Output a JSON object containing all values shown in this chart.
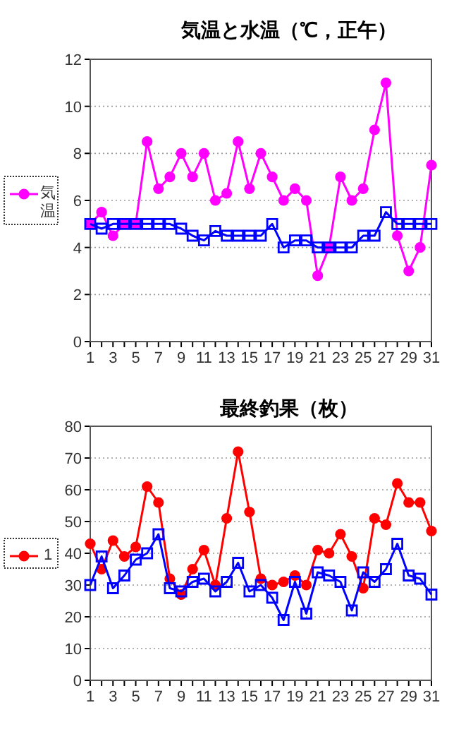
{
  "chart_data": [
    {
      "type": "line",
      "title": "気温と水温（℃，正午）",
      "x": [
        1,
        2,
        3,
        4,
        5,
        6,
        7,
        8,
        9,
        10,
        11,
        12,
        13,
        14,
        15,
        16,
        17,
        18,
        19,
        20,
        21,
        22,
        23,
        24,
        25,
        26,
        27,
        28,
        29,
        30,
        31
      ],
      "xlim": [
        1,
        31
      ],
      "xticks": [
        1,
        {
          "value": 2,
          "label": null
        },
        3,
        {
          "value": 4,
          "label": null
        },
        5,
        {
          "value": 6,
          "label": null
        },
        7,
        {
          "value": 8,
          "label": null
        },
        9,
        {
          "value": 10,
          "label": null
        },
        11,
        {
          "value": 12,
          "label": null
        },
        13,
        {
          "value": 14,
          "label": null
        },
        15,
        {
          "value": 16,
          "label": null
        },
        17,
        {
          "value": 18,
          "label": null
        },
        19,
        {
          "value": 20,
          "label": null
        },
        21,
        {
          "value": 22,
          "label": null
        },
        23,
        {
          "value": 24,
          "label": null
        },
        25,
        {
          "value": 26,
          "label": null
        },
        27,
        {
          "value": 28,
          "label": null
        },
        29,
        {
          "value": 30,
          "label": null
        },
        31
      ],
      "ylim": [
        0,
        12
      ],
      "yticks": [
        0,
        2,
        4,
        6,
        8,
        10,
        12
      ],
      "grid": "y",
      "legend": "left",
      "line_style": "solid",
      "series": [
        {
          "name": "気温",
          "color": "#ff00ff",
          "marker": "circle",
          "values": [
            5,
            5.5,
            4.5,
            5,
            5,
            8.5,
            6.5,
            7,
            8,
            7,
            8,
            6,
            6.3,
            8.5,
            6.5,
            8,
            7,
            6,
            6.5,
            6,
            2.8,
            4,
            7,
            6,
            6.5,
            9,
            11,
            4.5,
            3,
            4,
            7.5
          ]
        },
        {
          "color": "#0000ff",
          "marker": "square",
          "values": [
            5,
            4.8,
            5,
            5,
            5,
            5,
            5,
            5,
            4.8,
            4.5,
            4.3,
            4.7,
            4.5,
            4.5,
            4.5,
            4.5,
            5,
            4,
            4.3,
            4.3,
            4,
            4,
            4,
            4,
            4.5,
            4.5,
            5.5,
            5,
            5,
            5,
            5
          ]
        }
      ]
    },
    {
      "type": "line",
      "title": "最終釣果（枚）",
      "x": [
        1,
        2,
        3,
        4,
        5,
        6,
        7,
        8,
        9,
        10,
        11,
        12,
        13,
        14,
        15,
        16,
        17,
        18,
        19,
        20,
        21,
        22,
        23,
        24,
        25,
        26,
        27,
        28,
        29,
        30,
        31
      ],
      "xlim": [
        1,
        31
      ],
      "xticks": [
        1,
        {
          "value": 2,
          "label": null
        },
        3,
        {
          "value": 4,
          "label": null
        },
        5,
        {
          "value": 6,
          "label": null
        },
        7,
        {
          "value": 8,
          "label": null
        },
        9,
        {
          "value": 10,
          "label": null
        },
        11,
        {
          "value": 12,
          "label": null
        },
        13,
        {
          "value": 14,
          "label": null
        },
        15,
        {
          "value": 16,
          "label": null
        },
        17,
        {
          "value": 18,
          "label": null
        },
        19,
        {
          "value": 20,
          "label": null
        },
        21,
        {
          "value": 22,
          "label": null
        },
        23,
        {
          "value": 24,
          "label": null
        },
        25,
        {
          "value": 26,
          "label": null
        },
        27,
        {
          "value": 28,
          "label": null
        },
        29,
        {
          "value": 30,
          "label": null
        },
        31
      ],
      "ylim": [
        0,
        80
      ],
      "yticks": [
        0,
        10,
        20,
        30,
        40,
        50,
        60,
        70,
        80
      ],
      "grid": "y",
      "legend": "left",
      "line_style": "solid",
      "series": [
        {
          "name": "1",
          "color": "#ff0000",
          "marker": "circle",
          "values": [
            43,
            35,
            44,
            39,
            42,
            61,
            56,
            32,
            27,
            35,
            41,
            30,
            51,
            72,
            53,
            32,
            30,
            31,
            33,
            30,
            41,
            40,
            46,
            39,
            29,
            51,
            49,
            62,
            56,
            56,
            47
          ]
        },
        {
          "color": "#0000ff",
          "marker": "square",
          "values": [
            30,
            39,
            29,
            33,
            38,
            40,
            46,
            29,
            28,
            31,
            32,
            28,
            31,
            37,
            28,
            30,
            26,
            19,
            31,
            21,
            34,
            33,
            31,
            22,
            34,
            31,
            35,
            43,
            33,
            32,
            27
          ]
        }
      ]
    }
  ]
}
